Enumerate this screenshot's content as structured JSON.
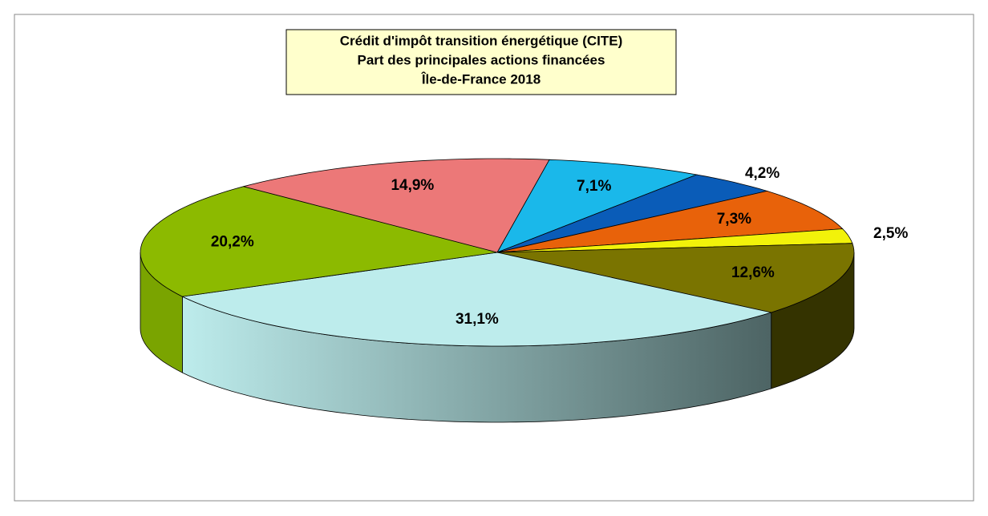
{
  "chart_data": {
    "type": "pie",
    "title": "Crédit d'impôt transition énergétique (CITE)",
    "subtitle": [
      "Part des principales actions financées",
      "Île-de-France 2018"
    ],
    "values": [
      7.1,
      4.2,
      7.3,
      2.5,
      12.6,
      31.1,
      20.2,
      14.9
    ],
    "value_labels": [
      "7,1%",
      "4,2%",
      "7,3%",
      "2,5%",
      "12,6%",
      "31,1%",
      "20,2%",
      "14,9%"
    ],
    "colors": [
      "#1ab8ea",
      "#0a5cb8",
      "#e8620a",
      "#f2f20a",
      "#7a7400",
      "#bdecec",
      "#8cba00",
      "#ec7878"
    ],
    "side_colors": [
      "#1090b8",
      "#06408a",
      "#b04a08",
      "#b8b800",
      "#343300",
      "#4d6464",
      "#7aa400",
      "#b05858"
    ]
  }
}
